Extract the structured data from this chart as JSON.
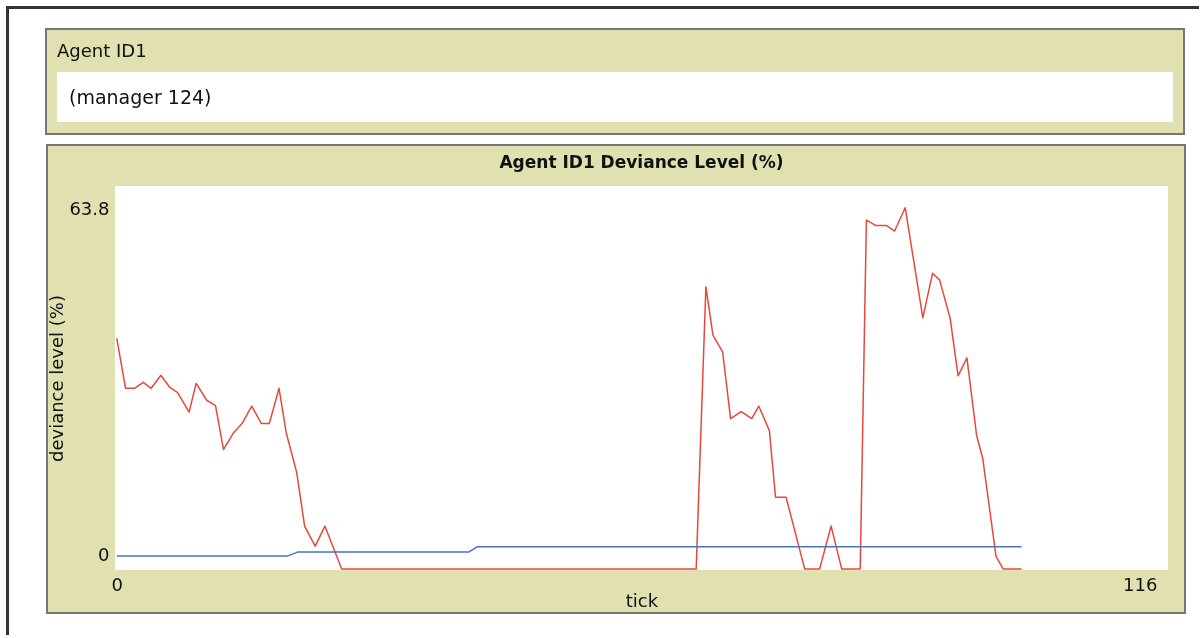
{
  "chart_data": {
    "type": "line",
    "title": "Agent ID1 Deviance Level (%)",
    "xlabel": "tick",
    "ylabel": "deviance level (%)",
    "annotations": [
      "Agent ID1",
      "(manager 124)"
    ],
    "xlim": [
      -0.2,
      119.2
    ],
    "ylim": [
      -2.6,
      68.2
    ],
    "xticks": [
      0,
      116
    ],
    "yticks": [
      0,
      63.8
    ],
    "series": [
      {
        "color": "#e8483b",
        "x": [
          0,
          1.0,
          2.0,
          3.0,
          3.9,
          5.0,
          6.0,
          6.9,
          8.2,
          9.0,
          10.2,
          11.2,
          12.1,
          13.2,
          14.2,
          15.3,
          16.4,
          17.3,
          18.4,
          19.2,
          20.4,
          21.3,
          22.5,
          23.6,
          25.5,
          65.7,
          66.8,
          67.6,
          68.7,
          69.6,
          70.8,
          72.0,
          72.8,
          74.0,
          74.7,
          75.9,
          78.0,
          79.7,
          81.0,
          82.2,
          84.3,
          85.0,
          86.1,
          87.3,
          88.2,
          89.4,
          91.4,
          92.5,
          93.3,
          94.5,
          95.4,
          96.4,
          97.5,
          98.2,
          99.7,
          100.5,
          102.6
        ],
        "values": [
          40.1,
          30.9,
          30.9,
          32.0,
          30.9,
          33.3,
          31.1,
          30.1,
          26.5,
          31.8,
          28.7,
          27.7,
          19.6,
          22.6,
          24.4,
          27.6,
          24.4,
          24.4,
          30.9,
          22.8,
          15.4,
          5.5,
          1.8,
          5.5,
          -2.4,
          -2.4,
          49.6,
          40.7,
          37.6,
          25.3,
          26.6,
          25.3,
          27.6,
          23.1,
          10.8,
          10.8,
          -2.4,
          -2.4,
          5.5,
          -2.4,
          -2.4,
          61.9,
          60.9,
          60.9,
          59.9,
          64.2,
          43.9,
          52.1,
          50.9,
          43.8,
          33.2,
          36.5,
          22.2,
          17.9,
          -0.1,
          -2.4,
          -2.4
        ]
      },
      {
        "color": "#4a72c4",
        "x": [
          0,
          19.4,
          20.5,
          39.9,
          40.9,
          102.6
        ],
        "values": [
          0,
          0,
          0.7,
          0.7,
          1.7,
          1.7
        ]
      }
    ]
  }
}
